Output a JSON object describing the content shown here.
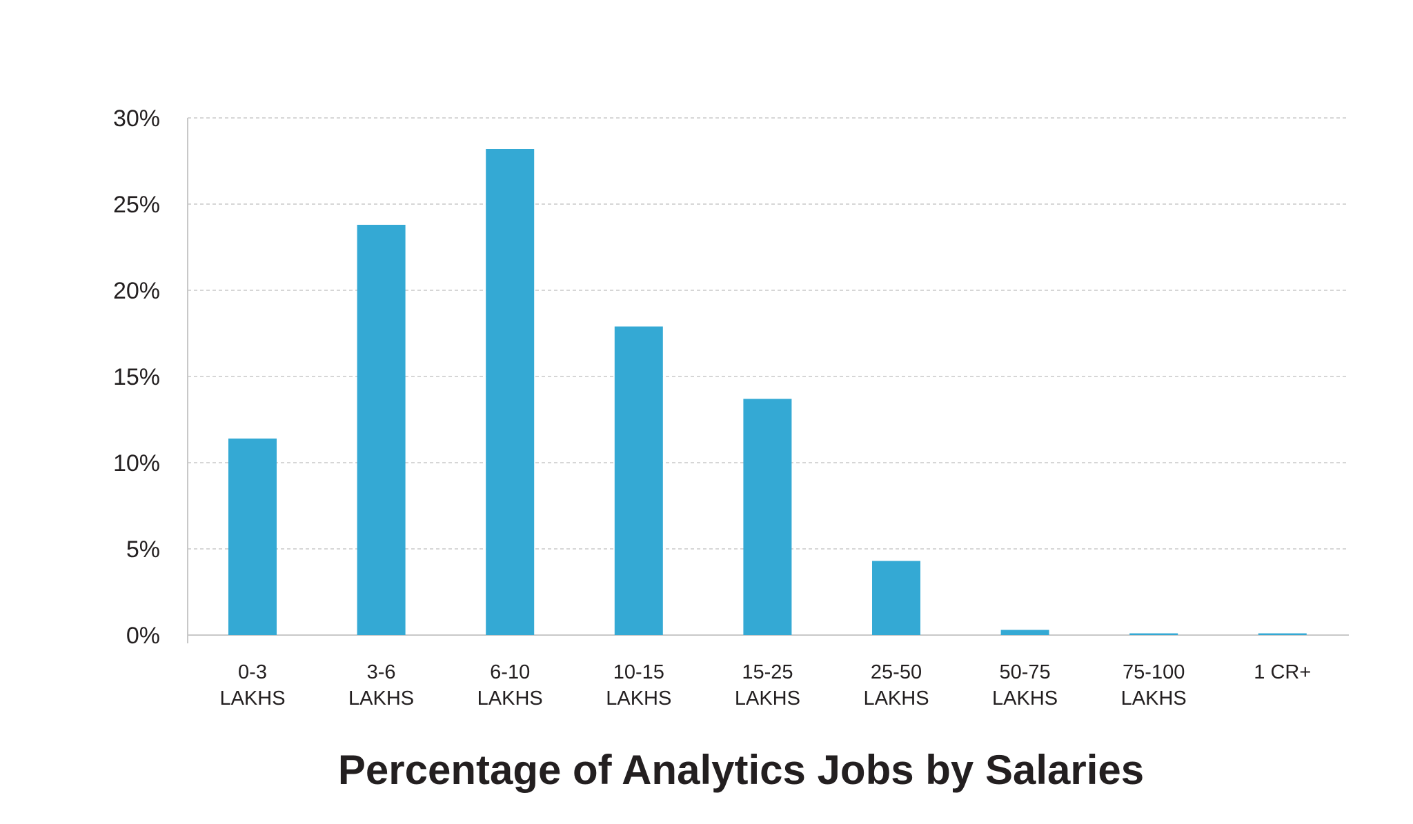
{
  "chart_data": {
    "type": "bar",
    "title": "Percentage of Analytics Jobs by Salaries",
    "xlabel": "",
    "ylabel": "",
    "categories": [
      [
        "0-3",
        "LAKHS"
      ],
      [
        "3-6",
        "LAKHS"
      ],
      [
        "6-10",
        "LAKHS"
      ],
      [
        "10-15",
        "LAKHS"
      ],
      [
        "15-25",
        "LAKHS"
      ],
      [
        "25-50",
        "LAKHS"
      ],
      [
        "50-75",
        "LAKHS"
      ],
      [
        "75-100",
        "LAKHS"
      ],
      [
        "1 CR+"
      ]
    ],
    "values": [
      11.4,
      23.8,
      28.2,
      17.9,
      13.7,
      4.3,
      0.3,
      0.1,
      0.1
    ],
    "ylim": [
      0,
      30
    ],
    "yticks": [
      "0%",
      "5%",
      "10%",
      "15%",
      "20%",
      "25%",
      "30%"
    ],
    "grid": true,
    "bar_color": "#34a9d4",
    "grid_color": "#c8c8c8",
    "axis_color": "#c8c8c8",
    "text_color": "#231f20"
  }
}
